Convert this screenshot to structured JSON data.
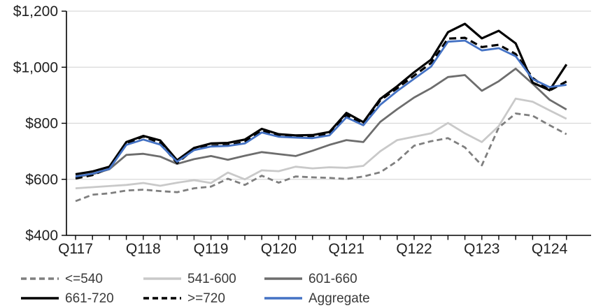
{
  "chart_data": {
    "type": "line",
    "title": "",
    "xlabel": "",
    "ylabel": "",
    "ylim": [
      400,
      1200
    ],
    "grid": "horizontal",
    "legend_position": "bottom",
    "y_tick_values": [
      400,
      600,
      800,
      1000,
      1200
    ],
    "y_tick_labels": [
      "$400",
      "$600",
      "$800",
      "$1,000",
      "$1,200"
    ],
    "x_tick_labels": [
      "Q117",
      "Q118",
      "Q119",
      "Q120",
      "Q121",
      "Q122",
      "Q123",
      "Q124"
    ],
    "x_label_every": 4,
    "categories": [
      "Q1'17",
      "Q2'17",
      "Q3'17",
      "Q4'17",
      "Q1'18",
      "Q2'18",
      "Q3'18",
      "Q4'18",
      "Q1'19",
      "Q2'19",
      "Q3'19",
      "Q4'19",
      "Q1'20",
      "Q2'20",
      "Q3'20",
      "Q4'20",
      "Q1'21",
      "Q2'21",
      "Q3'21",
      "Q4'21",
      "Q1'22",
      "Q2'22",
      "Q3'22",
      "Q4'22",
      "Q1'23",
      "Q2'23",
      "Q3'23",
      "Q4'23",
      "Q1'24",
      "Q2'24"
    ],
    "series": [
      {
        "name": "<=540",
        "color": "#7f7f7f",
        "dash": "8 5",
        "width": 2.8,
        "values": [
          522,
          545,
          550,
          560,
          563,
          558,
          554,
          568,
          574,
          602,
          580,
          613,
          588,
          610,
          607,
          605,
          601,
          610,
          625,
          665,
          720,
          736,
          747,
          714,
          650,
          785,
          835,
          827,
          793,
          761
        ]
      },
      {
        "name": "541-600",
        "color": "#c9c9c9",
        "dash": "",
        "width": 2.8,
        "values": [
          568,
          572,
          576,
          580,
          587,
          577,
          588,
          597,
          587,
          624,
          600,
          632,
          629,
          645,
          639,
          643,
          641,
          648,
          700,
          740,
          752,
          764,
          801,
          764,
          733,
          790,
          888,
          877,
          846,
          816
        ]
      },
      {
        "name": "601-660",
        "color": "#6d6d6d",
        "dash": "",
        "width": 2.8,
        "values": [
          608,
          618,
          636,
          687,
          691,
          681,
          655,
          672,
          683,
          670,
          684,
          697,
          690,
          683,
          702,
          723,
          740,
          733,
          805,
          850,
          892,
          925,
          965,
          972,
          916,
          950,
          995,
          941,
          884,
          849
        ]
      },
      {
        "name": "661-720",
        "color": "#000000",
        "dash": "",
        "width": 3.2,
        "values": [
          618,
          628,
          645,
          733,
          755,
          739,
          668,
          712,
          728,
          730,
          742,
          780,
          761,
          757,
          758,
          769,
          837,
          804,
          887,
          932,
          982,
          1027,
          1125,
          1155,
          1103,
          1130,
          1085,
          945,
          918,
          1010
        ]
      },
      {
        "name": ">=720",
        "color": "#000000",
        "dash": "10 6",
        "width": 3.2,
        "values": [
          603,
          615,
          640,
          727,
          753,
          730,
          658,
          708,
          719,
          722,
          733,
          775,
          757,
          752,
          755,
          762,
          829,
          796,
          882,
          925,
          970,
          1015,
          1102,
          1105,
          1072,
          1080,
          1047,
          962,
          917,
          949
        ]
      },
      {
        "name": "Aggregate",
        "color": "#4472c4",
        "dash": "",
        "width": 2.8,
        "values": [
          610,
          620,
          637,
          723,
          742,
          724,
          663,
          704,
          717,
          719,
          728,
          767,
          752,
          749,
          747,
          757,
          821,
          793,
          866,
          915,
          959,
          1002,
          1091,
          1095,
          1060,
          1068,
          1039,
          958,
          929,
          937
        ]
      }
    ],
    "colors": {
      "axis": "#000000",
      "gridline": "#d9d9d9",
      "tick_text": "#1f1f1f",
      "accent_blue": "#4472c4"
    }
  }
}
